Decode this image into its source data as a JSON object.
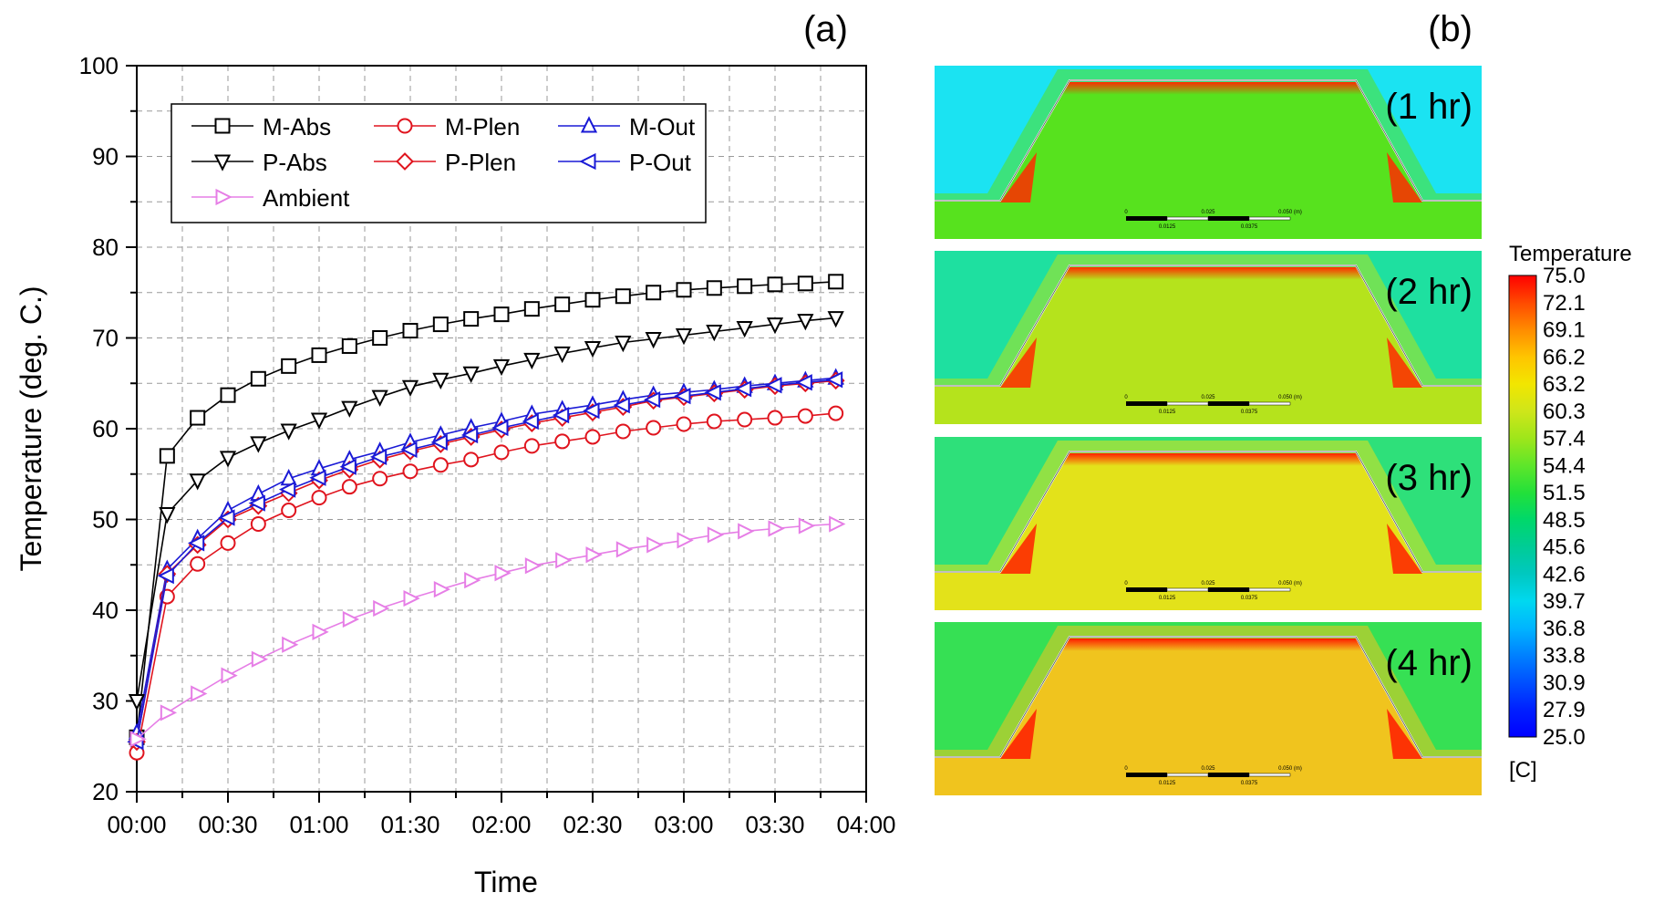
{
  "panel_a": {
    "label": "(a)"
  },
  "panel_b": {
    "label": "(b)",
    "snapshots": [
      "(1 hr)",
      "(2 hr)",
      "(3 hr)",
      "(4 hr)"
    ],
    "scale_text": {
      "ticks": [
        "0",
        "0.025",
        "0.050 (m)"
      ],
      "subticks": [
        "0.0125",
        "0.0375"
      ]
    },
    "colorbar": {
      "title": "Temperature",
      "unit": "[C]",
      "ticks": [
        "75.0",
        "72.1",
        "69.1",
        "66.2",
        "63.2",
        "60.3",
        "57.4",
        "54.4",
        "51.5",
        "48.5",
        "45.6",
        "42.6",
        "39.7",
        "36.8",
        "33.8",
        "30.9",
        "27.9",
        "25.0"
      ],
      "gradient": [
        "#ff0000",
        "#ff4a00",
        "#ff8c00",
        "#ffc400",
        "#f2e600",
        "#cfe61a",
        "#9ee61a",
        "#5ee62a",
        "#22e03a",
        "#00d86a",
        "#00cc96",
        "#00c8c0",
        "#00d8f0",
        "#00b4ff",
        "#0080ff",
        "#0050ff",
        "#0020ff",
        "#0000ff"
      ]
    },
    "fields": [
      {
        "ambient": "#1be3f2",
        "interior": "#57e21e",
        "hot": "#ff2a00"
      },
      {
        "ambient": "#1ee0a0",
        "interior": "#b5e31c",
        "hot": "#ff2a00"
      },
      {
        "ambient": "#2ee07a",
        "interior": "#e3e21a",
        "hot": "#ff2000"
      },
      {
        "ambient": "#36e054",
        "interior": "#f0c41e",
        "hot": "#ff1a00"
      }
    ]
  },
  "chart_data": {
    "type": "line",
    "title": "",
    "xlabel": "Time",
    "ylabel": "Temperature (deg. C.)",
    "xlim": [
      0,
      240
    ],
    "ylim": [
      20,
      100
    ],
    "x_tick_labels": [
      "00:00",
      "00:30",
      "01:00",
      "01:30",
      "02:00",
      "02:30",
      "03:00",
      "03:30",
      "04:00"
    ],
    "y_tick_labels": [
      "20",
      "30",
      "40",
      "50",
      "60",
      "70",
      "80",
      "90",
      "100"
    ],
    "grid": true,
    "legend_position": "top-left",
    "x_minutes": [
      0,
      10,
      20,
      30,
      40,
      50,
      60,
      70,
      80,
      90,
      100,
      110,
      120,
      130,
      140,
      150,
      160,
      170,
      180,
      190,
      200,
      210,
      220,
      230
    ],
    "series": [
      {
        "name": "M-Abs",
        "color": "#000000",
        "marker": "square",
        "values": [
          26,
          57,
          61.2,
          63.7,
          65.5,
          66.9,
          68.1,
          69.1,
          70,
          70.8,
          71.5,
          72.1,
          72.6,
          73.2,
          73.7,
          74.2,
          74.6,
          75,
          75.3,
          75.5,
          75.7,
          75.9,
          76,
          76.2
        ]
      },
      {
        "name": "M-Plen",
        "color": "#e0141e",
        "marker": "circle",
        "values": [
          24.3,
          41.5,
          45.1,
          47.4,
          49.5,
          51,
          52.4,
          53.6,
          54.5,
          55.3,
          56,
          56.6,
          57.4,
          58.1,
          58.6,
          59.1,
          59.7,
          60.1,
          60.5,
          60.8,
          61,
          61.2,
          61.4,
          61.7
        ]
      },
      {
        "name": "M-Out",
        "color": "#1a1ad6",
        "marker": "triangle-up",
        "values": [
          26.5,
          44.5,
          47.9,
          51,
          52.8,
          54.5,
          55.6,
          56.6,
          57.5,
          58.5,
          59.3,
          60.1,
          60.8,
          61.6,
          62.1,
          62.6,
          63.2,
          63.7,
          64,
          64.3,
          64.7,
          65,
          65.3,
          65.6
        ]
      },
      {
        "name": "P-Abs",
        "color": "#000000",
        "marker": "triangle-down",
        "values": [
          30,
          50.6,
          54.3,
          56.8,
          58.4,
          59.8,
          61,
          62.3,
          63.5,
          64.6,
          65.4,
          66.1,
          66.9,
          67.6,
          68.3,
          68.9,
          69.5,
          69.9,
          70.3,
          70.7,
          71.1,
          71.5,
          71.9,
          72.2
        ]
      },
      {
        "name": "P-Plen",
        "color": "#e0141e",
        "marker": "diamond",
        "values": [
          25.5,
          44,
          47.2,
          50,
          51.5,
          52.9,
          54.3,
          55.5,
          56.6,
          57.5,
          58.3,
          59.1,
          59.9,
          60.6,
          61.2,
          61.8,
          62.4,
          63.1,
          63.5,
          63.9,
          64.3,
          64.7,
          65,
          65.3
        ]
      },
      {
        "name": "P-Out",
        "color": "#1a1ad6",
        "marker": "triangle-left",
        "values": [
          25.5,
          43.8,
          47.4,
          50.2,
          51.8,
          53.3,
          54.6,
          55.8,
          56.9,
          57.7,
          58.5,
          59.3,
          60.1,
          60.8,
          61.5,
          62,
          62.6,
          63.2,
          63.6,
          64,
          64.4,
          64.8,
          65.1,
          65.4
        ]
      },
      {
        "name": "Ambient",
        "color": "#e67ee6",
        "marker": "triangle-right",
        "values": [
          25.8,
          28.7,
          30.8,
          32.8,
          34.6,
          36.2,
          37.6,
          39,
          40.2,
          41.3,
          42.3,
          43.3,
          44.1,
          44.9,
          45.5,
          46.1,
          46.7,
          47.2,
          47.7,
          48.3,
          48.7,
          49,
          49.3,
          49.5
        ]
      }
    ]
  }
}
